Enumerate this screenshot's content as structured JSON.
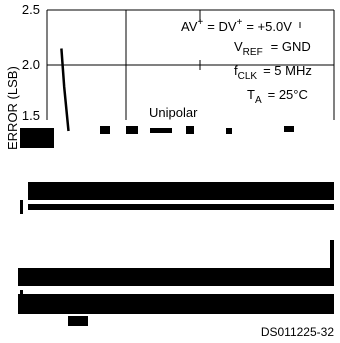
{
  "chart_data": {
    "type": "line",
    "ylabel": "ERROR (LSB)",
    "yticks": [
      "2.5",
      "2.0",
      "1.5"
    ],
    "ylim_visible": [
      1.5,
      2.5
    ],
    "conditions": {
      "line1_a": "AV",
      "line1_b": "= DV",
      "line1_c": "= +5.0V",
      "line2_a": "V",
      "line2_sub": "REF",
      "line2_b": "= GND",
      "line3_a": "f",
      "line3_sub": "CLK",
      "line3_b": "= 5 MHz",
      "line4_a": "T",
      "line4_sub": "A",
      "line4_b": "= 25°C",
      "plus": "+",
      "minus": "–"
    },
    "series": [
      {
        "name": "Unipolar",
        "x_frac": [
          0.05,
          0.06,
          0.075
        ],
        "y": [
          2.15,
          1.8,
          1.4
        ]
      }
    ],
    "grid": true,
    "label_unipolar": "Unipolar",
    "footer": "DS011225-32"
  }
}
